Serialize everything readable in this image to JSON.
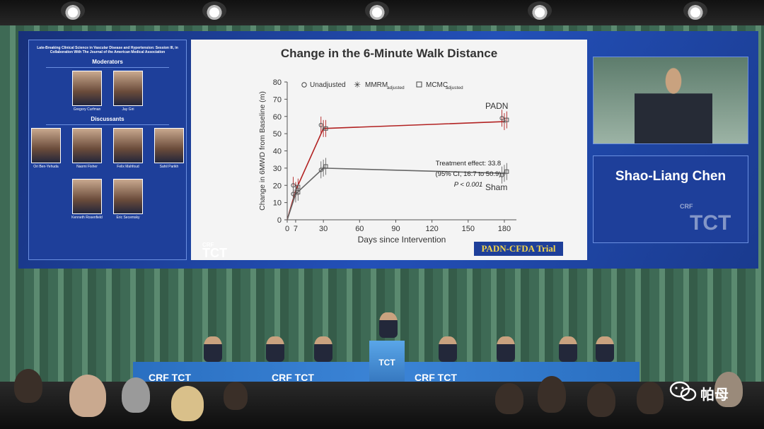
{
  "left_panel": {
    "session_title": "Late-Breaking Clinical Science in Vascular Disease and Hypertension: Session III, in Collaboration With The Journal of the American Medical Association",
    "moderators_heading": "Moderators",
    "moderators": [
      {
        "name": "Gregory Curfman"
      },
      {
        "name": "Jay Giri"
      }
    ],
    "discussants_heading": "Discussants",
    "discussants": [
      {
        "name": "Ori Ben-Yehuda"
      },
      {
        "name": "Naomi Fisher"
      },
      {
        "name": "Felix Mahfoud"
      },
      {
        "name": "Sahil Parikh"
      },
      {
        "name": "Kenneth Rosenfield"
      },
      {
        "name": "Eric Secemsky"
      }
    ]
  },
  "chart_data": {
    "type": "line",
    "title": "Change in the 6-Minute Walk Distance",
    "xlabel": "Days since Intervention",
    "ylabel": "Change in 6MWD from Baseline (m)",
    "x_ticks": [
      0,
      7,
      30,
      60,
      90,
      120,
      150,
      180
    ],
    "y_ticks": [
      0,
      10,
      20,
      30,
      40,
      50,
      60,
      70,
      80
    ],
    "xlim": [
      0,
      190
    ],
    "ylim": [
      0,
      80
    ],
    "legend": [
      "Unadjusted",
      "MMRM",
      "MCMC"
    ],
    "legend_subscript": "adjusted",
    "legend_placement": "top",
    "series": [
      {
        "name": "PADN",
        "color": "#b22222",
        "x": [
          0,
          7,
          30,
          180
        ],
        "y": [
          0,
          17,
          53,
          57
        ],
        "points": [
          [
            5,
            20
          ],
          [
            7,
            17
          ],
          [
            9,
            19
          ],
          [
            28,
            55
          ],
          [
            30,
            53
          ],
          [
            32,
            53
          ],
          [
            178,
            59
          ],
          [
            180,
            57
          ],
          [
            182,
            58
          ]
        ]
      },
      {
        "name": "Sham",
        "color": "#666666",
        "x": [
          0,
          7,
          30,
          180
        ],
        "y": [
          0,
          15,
          30,
          27
        ],
        "points": [
          [
            5,
            15
          ],
          [
            7,
            15
          ],
          [
            9,
            16
          ],
          [
            28,
            29
          ],
          [
            30,
            30
          ],
          [
            32,
            31
          ],
          [
            178,
            26
          ],
          [
            180,
            27
          ],
          [
            182,
            28
          ]
        ]
      }
    ],
    "annotation": [
      "Treatment effect: 33.8",
      "(95% CI, 16.7 to 50.9)",
      "P < 0.001"
    ]
  },
  "slide_footer": {
    "logo": "TCT",
    "logo_small": "CRF",
    "trial": "PADN-CFDA Trial"
  },
  "speaker": {
    "name": "Shao-Liang Chen",
    "logo_small": "CRF",
    "logo": "TCT"
  },
  "stage": {
    "podium_label": "TCT",
    "banner_labels": [
      "CRF TCT",
      "CRF TCT",
      "CRF TCT"
    ]
  },
  "watermark": {
    "text": "帕母"
  }
}
